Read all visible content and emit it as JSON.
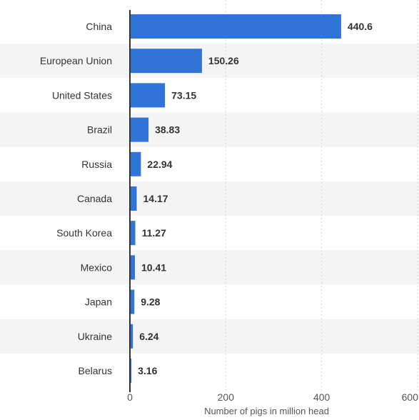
{
  "chart_data": {
    "type": "bar",
    "orientation": "horizontal",
    "categories": [
      "China",
      "European Union",
      "United States",
      "Brazil",
      "Russia",
      "Canada",
      "South Korea",
      "Mexico",
      "Japan",
      "Ukraine",
      "Belarus"
    ],
    "values": [
      440.6,
      150.26,
      73.15,
      38.83,
      22.94,
      14.17,
      11.27,
      10.41,
      9.28,
      6.24,
      3.16
    ],
    "value_labels": [
      "440.6",
      "150.26",
      "73.15",
      "38.83",
      "22.94",
      "14.17",
      "11.27",
      "10.41",
      "9.28",
      "6.24",
      "3.16"
    ],
    "xlabel": "Number of pigs in million head",
    "ylabel": "",
    "xlim": [
      0,
      600
    ],
    "xticks": [
      "0",
      "200",
      "400",
      "600"
    ],
    "xtick_values": [
      0,
      200,
      400,
      600
    ],
    "grid": "vertical dotted",
    "colors": {
      "bar": "#2f74d6",
      "stripe": "#f4f4f4",
      "axis": "#333333"
    }
  }
}
